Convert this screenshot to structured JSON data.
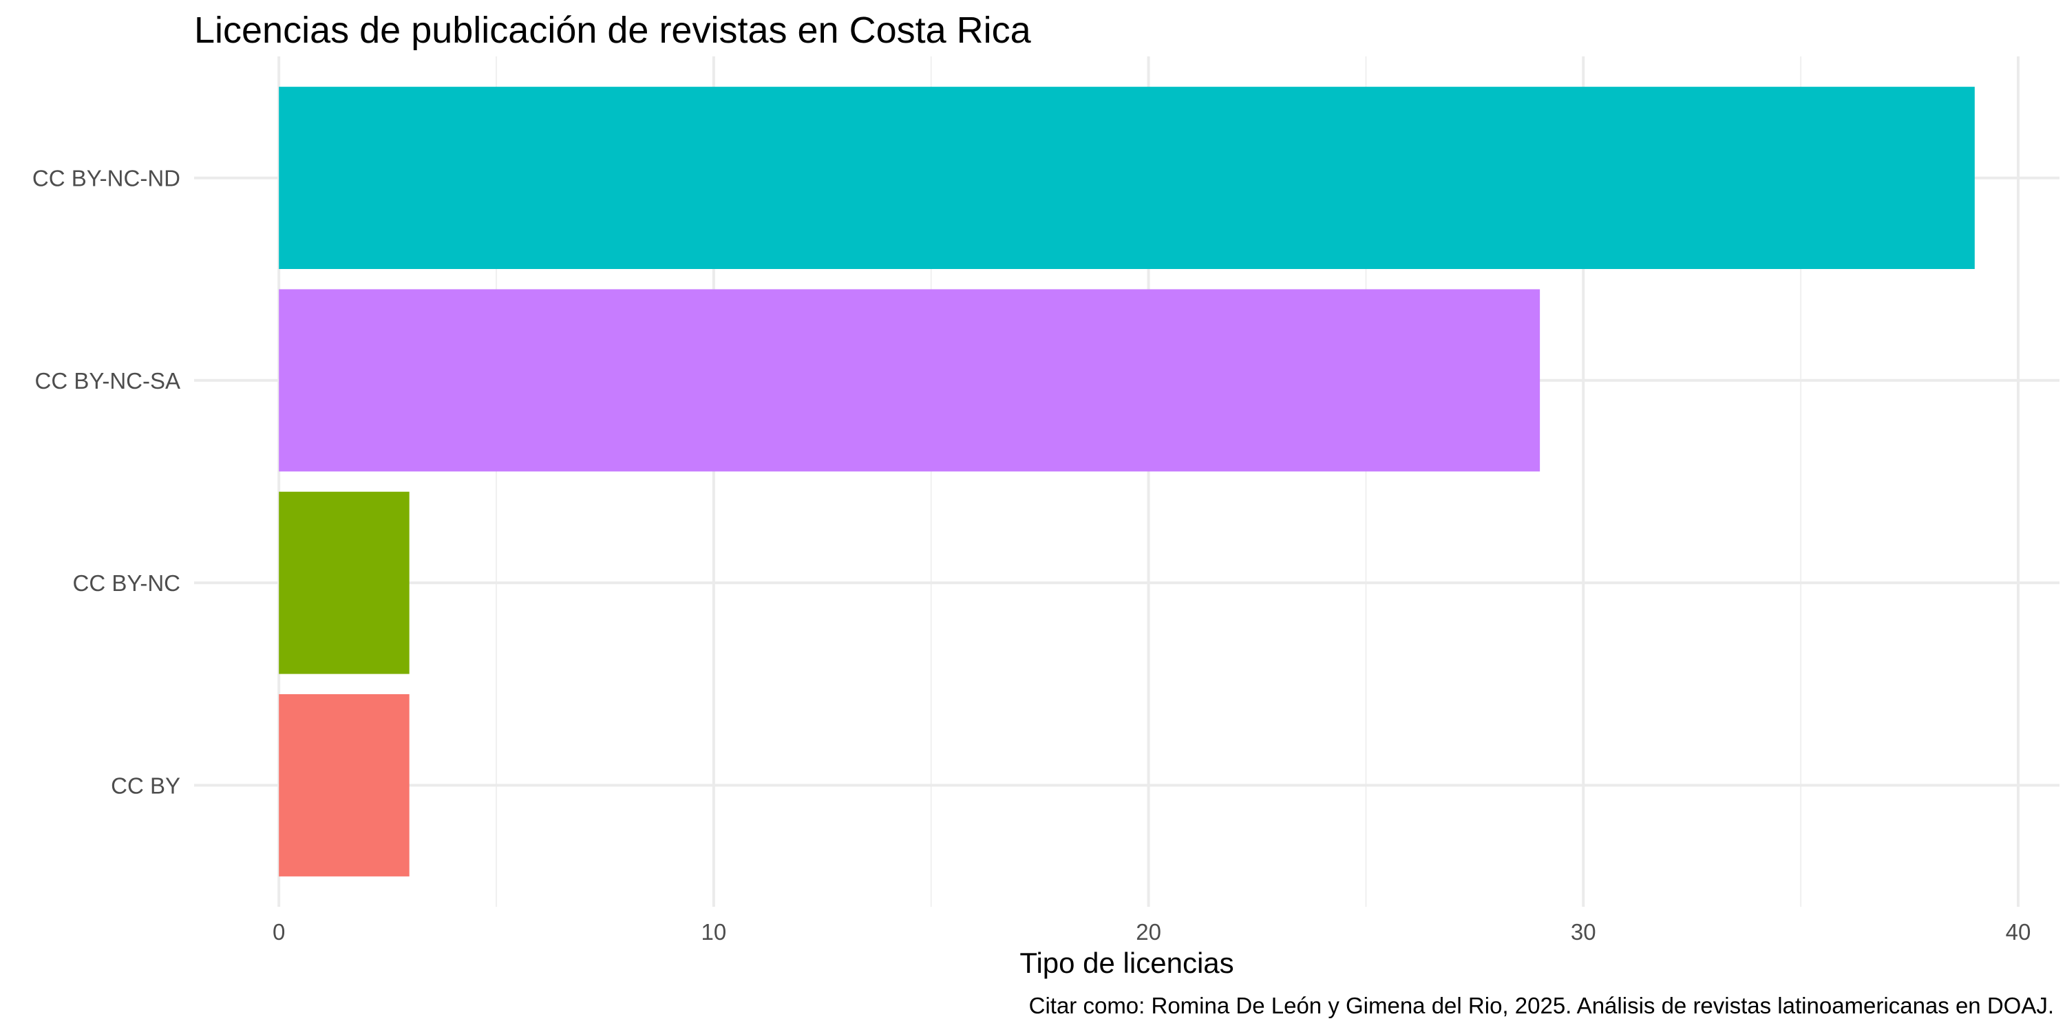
{
  "chart_data": {
    "type": "bar",
    "orientation": "horizontal",
    "title": "Licencias de publicación de revistas en Costa Rica",
    "xlabel": "Tipo de licencias",
    "ylabel": "",
    "caption": "Citar como: Romina De León y Gimena del Rio, 2025. Análisis de revistas latinoamericanas en DOAJ.",
    "categories": [
      "CC BY",
      "CC BY-NC",
      "CC BY-NC-SA",
      "CC BY-NC-ND"
    ],
    "values": [
      3,
      3,
      29,
      39
    ],
    "colors": [
      "#F8766D",
      "#7CAE00",
      "#C77CFF",
      "#00BFC4"
    ],
    "xlim": [
      -1.95,
      40.95
    ],
    "xticks": [
      0,
      10,
      20,
      30,
      40
    ],
    "grid": true,
    "legend": "none"
  }
}
